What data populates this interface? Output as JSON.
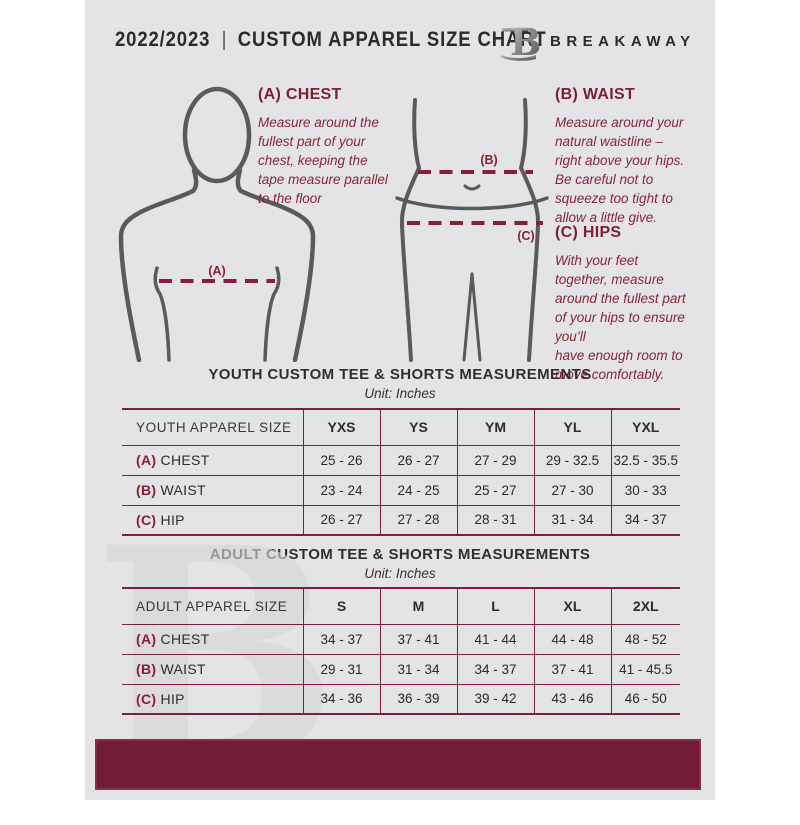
{
  "header": {
    "season": "2022/2023",
    "divider": "|",
    "title": "CUSTOM APPAREL SIZE CHART",
    "brand": "BREAKAWAY",
    "logo_letter": "B"
  },
  "instructions": {
    "chest": {
      "heading": "(A) CHEST",
      "body": "Measure around the\nfullest part of your\nchest, keeping the\ntape measure parallel\nto the floor"
    },
    "waist": {
      "heading": "(B) WAIST",
      "body": "Measure around your\nnatural waistline –\nright above your hips.\nBe careful not to\nsqueeze too tight to\nallow a little give."
    },
    "hips": {
      "heading": "(C) HIPS",
      "body": "With your feet\ntogether, measure\naround the fullest part\nof your hips to ensure\nyou’ll\nhave enough room to\nmove comfortably."
    }
  },
  "figure_labels": {
    "chest": "(A)",
    "waist": "(B)",
    "hips": "(C)"
  },
  "tables": [
    {
      "title": "YOUTH CUSTOM TEE & SHORTS MEASUREMENTS",
      "unit": "Unit: Inches",
      "size_header": "YOUTH APPAREL SIZE",
      "sizes": [
        "YXS",
        "YS",
        "YM",
        "YL",
        "YXL"
      ],
      "rows": [
        {
          "key": "(A)",
          "label": "CHEST",
          "values": [
            "25 - 26",
            "26 - 27",
            "27 - 29",
            "29 - 32.5",
            "32.5 - 35.5"
          ]
        },
        {
          "key": "(B)",
          "label": "WAIST",
          "values": [
            "23 - 24",
            "24 - 25",
            "25 - 27",
            "27 - 30",
            "30 - 33"
          ]
        },
        {
          "key": "(C)",
          "label": "HIP",
          "values": [
            "26 - 27",
            "27 - 28",
            "28 - 31",
            "31 - 34",
            "34 - 37"
          ]
        }
      ]
    },
    {
      "title": "ADULT CUSTOM TEE & SHORTS MEASUREMENTS",
      "unit": "Unit: Inches",
      "size_header": "ADULT APPAREL SIZE",
      "sizes": [
        "S",
        "M",
        "L",
        "XL",
        "2XL"
      ],
      "rows": [
        {
          "key": "(A)",
          "label": "CHEST",
          "values": [
            "34 - 37",
            "37 - 41",
            "41 - 44",
            "44 - 48",
            "48 - 52"
          ]
        },
        {
          "key": "(B)",
          "label": "WAIST",
          "values": [
            "29 - 31",
            "31 - 34",
            "34 - 37",
            "37 - 41",
            "41 - 45.5"
          ]
        },
        {
          "key": "(C)",
          "label": "HIP",
          "values": [
            "34 - 36",
            "36 - 39",
            "39 - 42",
            "43 - 46",
            "46 - 50"
          ]
        }
      ]
    }
  ],
  "watermark_letter": "B",
  "colors": {
    "page_bg": "#e4e4e6",
    "maroon_accent": "#7b2136",
    "maroon_text": "#8a2438",
    "footer_bar": "#721d35",
    "dark_text": "#2b2b2d",
    "figure_gray": "#5a5a5c"
  }
}
